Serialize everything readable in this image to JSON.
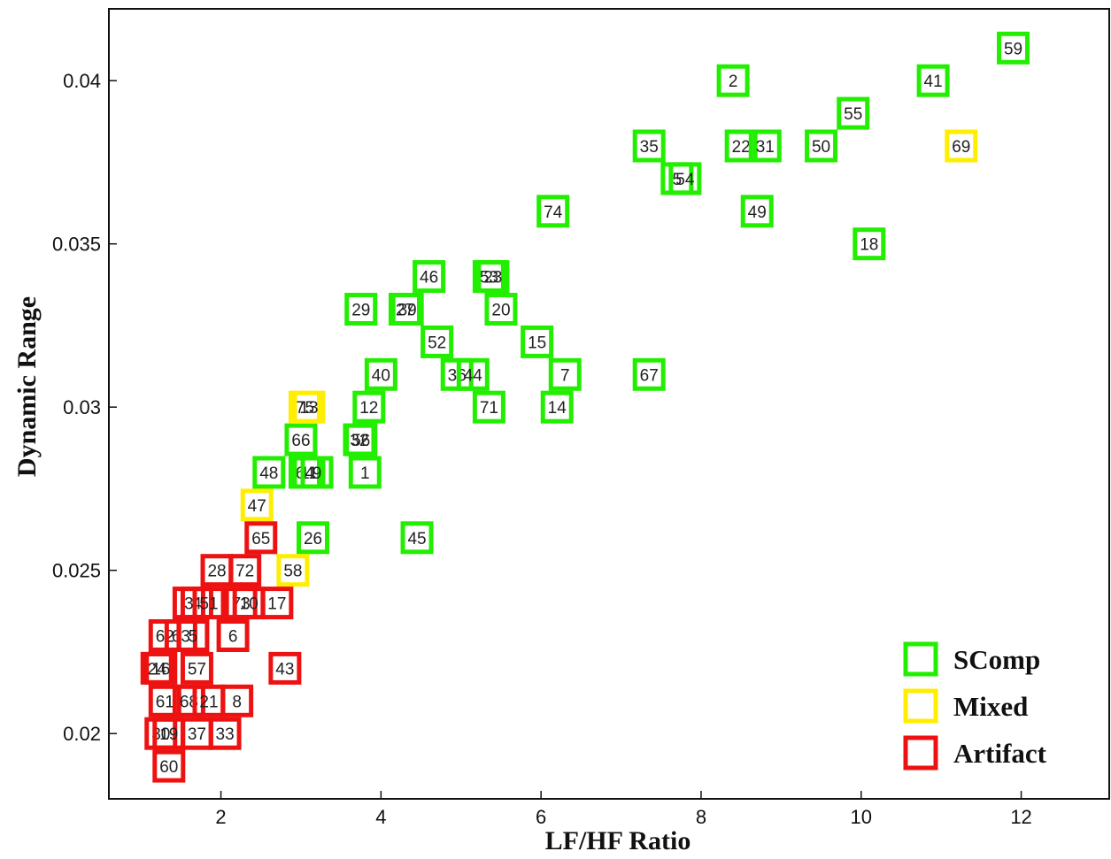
{
  "chart_data": {
    "type": "scatter",
    "xlabel": "LF/HF Ratio",
    "ylabel": "Dynamic Range",
    "xlim": [
      0.6,
      13.1
    ],
    "ylim": [
      0.018,
      0.0422
    ],
    "xticks": [
      2,
      4,
      6,
      8,
      10,
      12
    ],
    "xtick_labels": [
      "2",
      "4",
      "6",
      "8",
      "10",
      "12"
    ],
    "yticks": [
      0.02,
      0.025,
      0.03,
      0.035,
      0.04
    ],
    "ytick_labels": [
      "0.02",
      "0.025",
      "0.03",
      "0.035",
      "0.04"
    ],
    "grid": false,
    "legend_position": "bottom-right",
    "series": [
      {
        "name": "SComp",
        "color": "#22ee00",
        "points": [
          {
            "label": "59",
            "x": 11.9,
            "y": 0.041
          },
          {
            "label": "2",
            "x": 8.4,
            "y": 0.04
          },
          {
            "label": "41",
            "x": 10.9,
            "y": 0.04
          },
          {
            "label": "55",
            "x": 9.9,
            "y": 0.039
          },
          {
            "label": "35",
            "x": 7.35,
            "y": 0.038
          },
          {
            "label": "22",
            "x": 8.5,
            "y": 0.038
          },
          {
            "label": "31",
            "x": 8.8,
            "y": 0.038
          },
          {
            "label": "50",
            "x": 9.5,
            "y": 0.038
          },
          {
            "label": "5",
            "x": 7.7,
            "y": 0.037
          },
          {
            "label": "54",
            "x": 7.8,
            "y": 0.037
          },
          {
            "label": "74",
            "x": 6.15,
            "y": 0.036
          },
          {
            "label": "49",
            "x": 8.7,
            "y": 0.036
          },
          {
            "label": "18",
            "x": 10.1,
            "y": 0.035
          },
          {
            "label": "46",
            "x": 4.6,
            "y": 0.034
          },
          {
            "label": "53",
            "x": 5.35,
            "y": 0.034
          },
          {
            "label": "23",
            "x": 5.4,
            "y": 0.034
          },
          {
            "label": "29",
            "x": 3.75,
            "y": 0.033
          },
          {
            "label": "27",
            "x": 4.3,
            "y": 0.033
          },
          {
            "label": "39",
            "x": 4.33,
            "y": 0.033
          },
          {
            "label": "20",
            "x": 5.5,
            "y": 0.033
          },
          {
            "label": "52",
            "x": 4.7,
            "y": 0.032
          },
          {
            "label": "15",
            "x": 5.95,
            "y": 0.032
          },
          {
            "label": "40",
            "x": 4.0,
            "y": 0.031
          },
          {
            "label": "36",
            "x": 4.95,
            "y": 0.031
          },
          {
            "label": "44",
            "x": 5.15,
            "y": 0.031
          },
          {
            "label": "7",
            "x": 6.3,
            "y": 0.031
          },
          {
            "label": "67",
            "x": 7.35,
            "y": 0.031
          },
          {
            "label": "12",
            "x": 3.85,
            "y": 0.03
          },
          {
            "label": "71",
            "x": 5.35,
            "y": 0.03
          },
          {
            "label": "14",
            "x": 6.2,
            "y": 0.03
          },
          {
            "label": "66",
            "x": 3.0,
            "y": 0.029
          },
          {
            "label": "32",
            "x": 3.73,
            "y": 0.029
          },
          {
            "label": "56",
            "x": 3.75,
            "y": 0.029
          },
          {
            "label": "48",
            "x": 2.6,
            "y": 0.028
          },
          {
            "label": "64",
            "x": 3.05,
            "y": 0.028
          },
          {
            "label": "11",
            "x": 3.1,
            "y": 0.028
          },
          {
            "label": "9",
            "x": 3.2,
            "y": 0.028
          },
          {
            "label": "1",
            "x": 3.8,
            "y": 0.028
          },
          {
            "label": "26",
            "x": 3.15,
            "y": 0.026
          },
          {
            "label": "45",
            "x": 4.45,
            "y": 0.026
          }
        ]
      },
      {
        "name": "Mixed",
        "color": "#ffee00",
        "points": [
          {
            "label": "69",
            "x": 11.25,
            "y": 0.038
          },
          {
            "label": "75",
            "x": 3.05,
            "y": 0.03
          },
          {
            "label": "13",
            "x": 3.1,
            "y": 0.03
          },
          {
            "label": "47",
            "x": 2.45,
            "y": 0.027
          },
          {
            "label": "58",
            "x": 2.9,
            "y": 0.025
          }
        ]
      },
      {
        "name": "Artifact",
        "color": "#ee1111",
        "points": [
          {
            "label": "65",
            "x": 2.5,
            "y": 0.026
          },
          {
            "label": "28",
            "x": 1.95,
            "y": 0.025
          },
          {
            "label": "72",
            "x": 2.3,
            "y": 0.025
          },
          {
            "label": "3",
            "x": 1.6,
            "y": 0.024
          },
          {
            "label": "4",
            "x": 1.7,
            "y": 0.024
          },
          {
            "label": "51",
            "x": 1.85,
            "y": 0.024
          },
          {
            "label": "73",
            "x": 2.25,
            "y": 0.024
          },
          {
            "label": "10",
            "x": 2.35,
            "y": 0.024
          },
          {
            "label": "17",
            "x": 2.7,
            "y": 0.024
          },
          {
            "label": "62",
            "x": 1.3,
            "y": 0.023
          },
          {
            "label": "63",
            "x": 1.5,
            "y": 0.023
          },
          {
            "label": "5",
            "x": 1.65,
            "y": 0.023
          },
          {
            "label": "6",
            "x": 2.15,
            "y": 0.023
          },
          {
            "label": "24",
            "x": 1.2,
            "y": 0.022
          },
          {
            "label": "16",
            "x": 1.25,
            "y": 0.022
          },
          {
            "label": "57",
            "x": 1.7,
            "y": 0.022
          },
          {
            "label": "43",
            "x": 2.8,
            "y": 0.022
          },
          {
            "label": "61",
            "x": 1.3,
            "y": 0.021
          },
          {
            "label": "68",
            "x": 1.6,
            "y": 0.021
          },
          {
            "label": "21",
            "x": 1.85,
            "y": 0.021
          },
          {
            "label": "8",
            "x": 2.2,
            "y": 0.021
          },
          {
            "label": "30",
            "x": 1.25,
            "y": 0.02
          },
          {
            "label": "19",
            "x": 1.35,
            "y": 0.02
          },
          {
            "label": "37",
            "x": 1.7,
            "y": 0.02
          },
          {
            "label": "33",
            "x": 2.05,
            "y": 0.02
          },
          {
            "label": "60",
            "x": 1.35,
            "y": 0.019
          }
        ]
      }
    ]
  }
}
